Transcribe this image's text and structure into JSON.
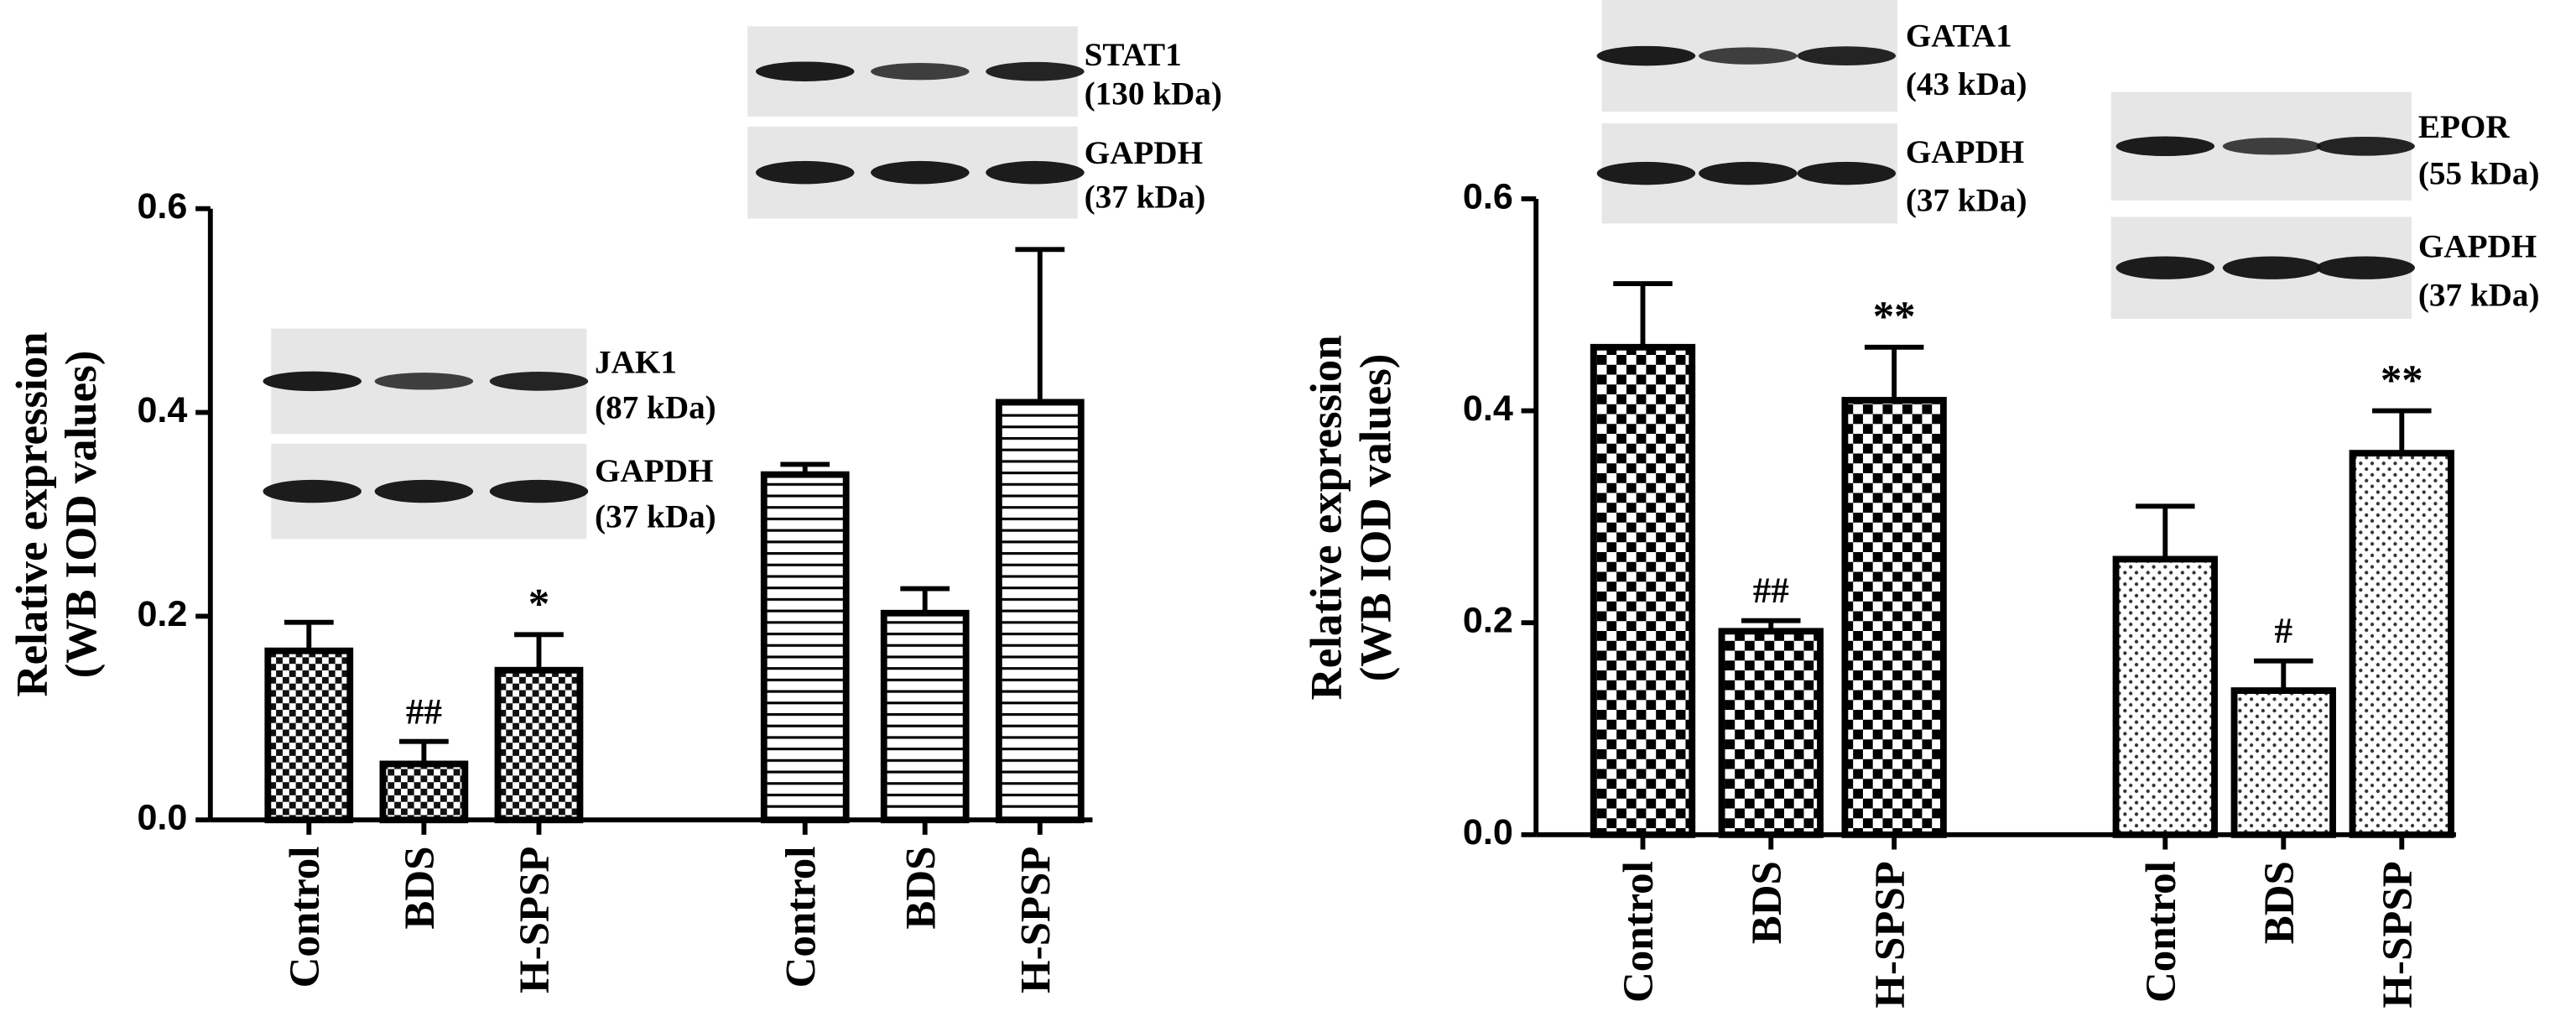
{
  "chart_data": [
    {
      "type": "bar",
      "ylabel": [
        "Relative expression",
        "(WB IOD values)"
      ],
      "ylim": [
        0,
        0.6
      ],
      "yticks": [
        {
          "value": 0,
          "label": "0.0"
        },
        0.2,
        0.4,
        0.6
      ],
      "groups": [
        {
          "blot": {
            "target": "JAK1",
            "target_kda": "(87 kDa)",
            "control": "GAPDH",
            "control_kda": "(37 kDa)"
          },
          "categories": [
            "Control",
            "BDS",
            "H-SPSP"
          ],
          "values": [
            0.166,
            0.055,
            0.147
          ],
          "errors": [
            0.028,
            0.022,
            0.035
          ],
          "annotations": [
            null,
            "##",
            "*"
          ],
          "pattern": "checker-small"
        },
        {
          "blot": {
            "target": "STAT1",
            "target_kda": "(130 kDa)",
            "control": "GAPDH",
            "control_kda": "(37 kDa)"
          },
          "categories": [
            "Control",
            "BDS",
            "H-SPSP"
          ],
          "values": [
            0.339,
            0.203,
            0.41
          ],
          "errors": [
            0.01,
            0.024,
            0.15
          ],
          "annotations": [
            null,
            null,
            null
          ],
          "pattern": "hlines"
        }
      ]
    },
    {
      "type": "bar",
      "ylabel": [
        "Relative expression",
        "(WB IOD values)"
      ],
      "ylim": [
        0,
        0.6
      ],
      "yticks": [
        {
          "value": 0,
          "label": "0.0"
        },
        0.2,
        0.4,
        0.6
      ],
      "groups": [
        {
          "blot": {
            "target": "GATA1",
            "target_kda": "(43 kDa)",
            "control": "GAPDH",
            "control_kda": "(37 kDa)"
          },
          "categories": [
            "Control",
            "BDS",
            "H-SPSP"
          ],
          "values": [
            0.46,
            0.192,
            0.41
          ],
          "errors": [
            0.06,
            0.01,
            0.05
          ],
          "annotations": [
            null,
            "##",
            "**"
          ],
          "pattern": "checker"
        },
        {
          "blot": {
            "target": "EPOR",
            "target_kda": "(55 kDa)",
            "control": "GAPDH",
            "control_kda": "(37 kDa)"
          },
          "categories": [
            "Control",
            "BDS",
            "H-SPSP"
          ],
          "values": [
            0.26,
            0.136,
            0.36
          ],
          "errors": [
            0.05,
            0.028,
            0.04
          ],
          "annotations": [
            null,
            "#",
            "**"
          ],
          "pattern": "dots"
        }
      ]
    }
  ]
}
